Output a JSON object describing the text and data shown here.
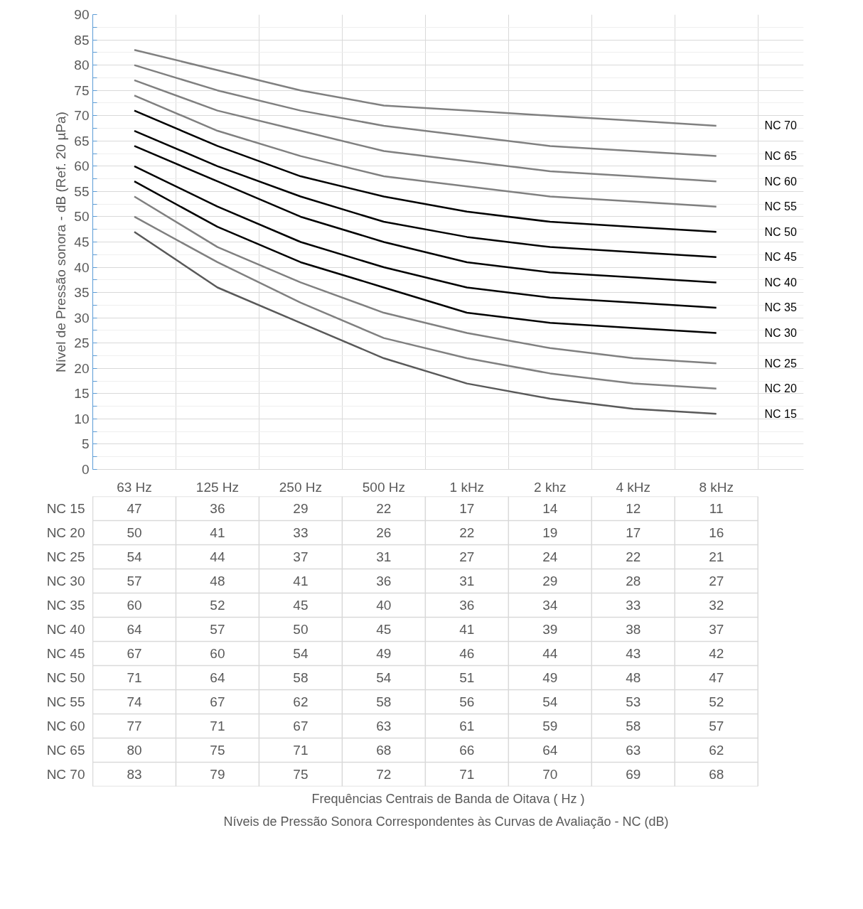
{
  "chart_data": {
    "type": "line",
    "ylabel": "Nível de Pressão sonora - dB (Ref. 20 µPa)",
    "annotations": [
      "Frequências Centrais de Banda de Oitava ( Hz )",
      "Níveis de Pressão Sonora Correspondentes às Curvas de Avaliação - NC  (dB)"
    ],
    "categories": [
      "63 Hz",
      "125 Hz",
      "250 Hz",
      "500 Hz",
      "1 kHz",
      "2 khz",
      "4 kHz",
      "8 kHz"
    ],
    "ylim": [
      0,
      90
    ],
    "yticks": [
      0,
      5,
      10,
      15,
      20,
      25,
      30,
      35,
      40,
      45,
      50,
      55,
      60,
      65,
      70,
      75,
      80,
      85,
      90
    ],
    "grid": true,
    "marker": "none",
    "line_style": "solid",
    "data_labels": true,
    "series": [
      {
        "name": "NC 15",
        "color": "#595959",
        "values": [
          47,
          36,
          29,
          22,
          17,
          14,
          12,
          11
        ]
      },
      {
        "name": "NC 20",
        "color": "#808080",
        "values": [
          50,
          41,
          33,
          26,
          22,
          19,
          17,
          16
        ]
      },
      {
        "name": "NC 25",
        "color": "#808080",
        "values": [
          54,
          44,
          37,
          31,
          27,
          24,
          22,
          21
        ]
      },
      {
        "name": "NC 30",
        "color": "#000000",
        "values": [
          57,
          48,
          41,
          36,
          31,
          29,
          28,
          27
        ]
      },
      {
        "name": "NC 35",
        "color": "#000000",
        "values": [
          60,
          52,
          45,
          40,
          36,
          34,
          33,
          32
        ]
      },
      {
        "name": "NC 40",
        "color": "#000000",
        "values": [
          64,
          57,
          50,
          45,
          41,
          39,
          38,
          37
        ]
      },
      {
        "name": "NC 45",
        "color": "#000000",
        "values": [
          67,
          60,
          54,
          49,
          46,
          44,
          43,
          42
        ]
      },
      {
        "name": "NC 50",
        "color": "#000000",
        "values": [
          71,
          64,
          58,
          54,
          51,
          49,
          48,
          47
        ]
      },
      {
        "name": "NC 55",
        "color": "#808080",
        "values": [
          74,
          67,
          62,
          58,
          56,
          54,
          53,
          52
        ]
      },
      {
        "name": "NC 60",
        "color": "#808080",
        "values": [
          77,
          71,
          67,
          63,
          61,
          59,
          58,
          57
        ]
      },
      {
        "name": "NC 65",
        "color": "#808080",
        "values": [
          80,
          75,
          71,
          68,
          66,
          64,
          63,
          62
        ]
      },
      {
        "name": "NC 70",
        "color": "#808080",
        "values": [
          83,
          79,
          75,
          72,
          71,
          70,
          69,
          68
        ]
      }
    ]
  }
}
